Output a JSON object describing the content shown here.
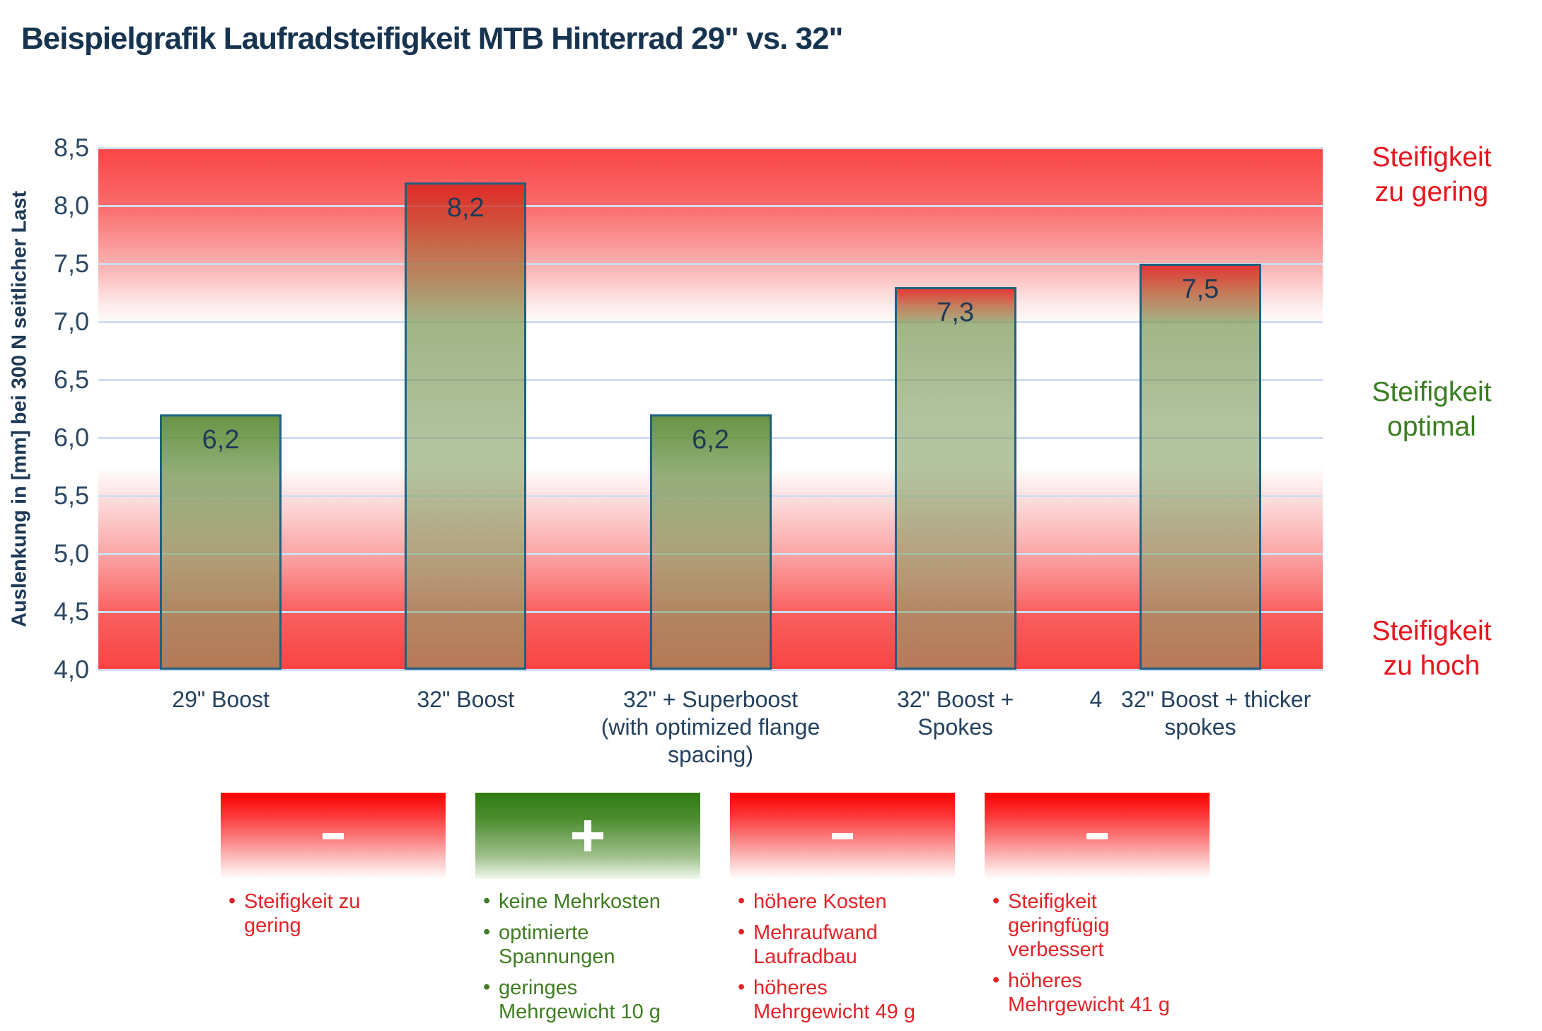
{
  "title": "Beispielgrafik Laufradsteifigkeit MTB Hinterrad 29\" vs. 32\"",
  "colors": {
    "title_navy": "#16334f",
    "axis_navy": "#2a4763",
    "bar_border_teal": "#20607e",
    "gridline_blue": "#cfdef1",
    "zone_red": "#e8141c",
    "zone_green": "#3a7d21",
    "box_red": "#fe0000",
    "box_green": "#2d7c10"
  },
  "chart_data": {
    "type": "bar",
    "title": "Beispielgrafik Laufradsteifigkeit MTB Hinterrad 29\" vs. 32\"",
    "xlabel": "",
    "ylabel": "Auslenkung in [mm] bei 300 N seitlicher Last",
    "ylim": [
      4.0,
      8.5
    ],
    "ytick_step": 0.5,
    "grid": true,
    "legend_position": "none",
    "yticks": [
      {
        "value": 8.5,
        "label": "8,5"
      },
      {
        "value": 8.0,
        "label": "8,0"
      },
      {
        "value": 7.5,
        "label": "7,5"
      },
      {
        "value": 7.0,
        "label": "7,0"
      },
      {
        "value": 6.5,
        "label": "6,5"
      },
      {
        "value": 6.0,
        "label": "6,0"
      },
      {
        "value": 5.5,
        "label": "5,5"
      },
      {
        "value": 5.0,
        "label": "5,0"
      },
      {
        "value": 4.5,
        "label": "4,5"
      },
      {
        "value": 4.0,
        "label": "4,0"
      }
    ],
    "categories": [
      "29\" Boost",
      "32\" Boost",
      "32\" + Superboost (with optimized flange spacing)",
      "32\" Boost + Spokes",
      "4  32\" Boost + thicker spokes"
    ],
    "category_label_lines": [
      [
        "29\" Boost"
      ],
      [
        "32\" Boost"
      ],
      [
        "32\" + Superboost",
        "(with optimized flange",
        "spacing)"
      ],
      [
        "32\" Boost +",
        "Spokes"
      ],
      [
        "4   32\" Boost + thicker",
        "spokes"
      ]
    ],
    "values": [
      6.2,
      8.2,
      6.2,
      7.3,
      7.5
    ],
    "value_labels": [
      "6,2",
      "8,2",
      "6,2",
      "7,3",
      "7,5"
    ],
    "zones": [
      {
        "label": "Steifigkeit zu gering",
        "lines": [
          "Steifigkeit",
          "zu gering"
        ],
        "color": "#e8141c",
        "range": [
          7.0,
          8.5
        ]
      },
      {
        "label": "Steifigkeit optimal",
        "lines": [
          "Steifigkeit",
          "optimal"
        ],
        "color": "#3a7d21",
        "range": [
          5.6,
          7.0
        ]
      },
      {
        "label": "Steifigkeit zu hoch",
        "lines": [
          "Steifigkeit",
          "zu hoch"
        ],
        "color": "#e8141c",
        "range": [
          4.0,
          5.6
        ]
      }
    ]
  },
  "legend_boxes": [
    {
      "sign": "-",
      "theme": "red",
      "bullets": [
        "Steifigkeit zu gering"
      ]
    },
    {
      "sign": "+",
      "theme": "green",
      "bullets": [
        "keine Mehrkosten",
        "optimierte Spannungen",
        "geringes Mehrgewicht 10 g"
      ]
    },
    {
      "sign": "-",
      "theme": "red",
      "bullets": [
        "höhere Kosten",
        "Mehraufwand Laufradbau",
        "höheres Mehrgewicht 49 g"
      ]
    },
    {
      "sign": "-",
      "theme": "red",
      "bullets": [
        "Steifigkeit geringfügig verbessert",
        "höheres Mehrgewicht 41 g"
      ]
    }
  ]
}
